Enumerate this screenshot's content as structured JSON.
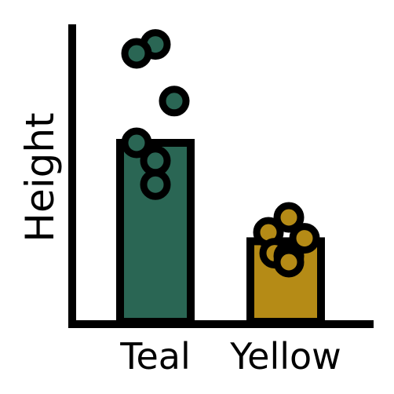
{
  "chart_data": {
    "type": "bar",
    "title": "",
    "xlabel": "",
    "ylabel": "Height",
    "ylim": [
      0,
      10
    ],
    "grid": false,
    "legend": "none",
    "categories": [
      "Teal",
      "Yellow"
    ],
    "values": [
      6.0,
      2.7
    ],
    "colors": [
      "#2a6654",
      "#b58b16"
    ],
    "points": [
      [
        9.3,
        9.0,
        7.4,
        6.0,
        5.4,
        4.6
      ],
      [
        3.5,
        3.0,
        2.8,
        2.3,
        2.2,
        2.0
      ]
    ]
  }
}
